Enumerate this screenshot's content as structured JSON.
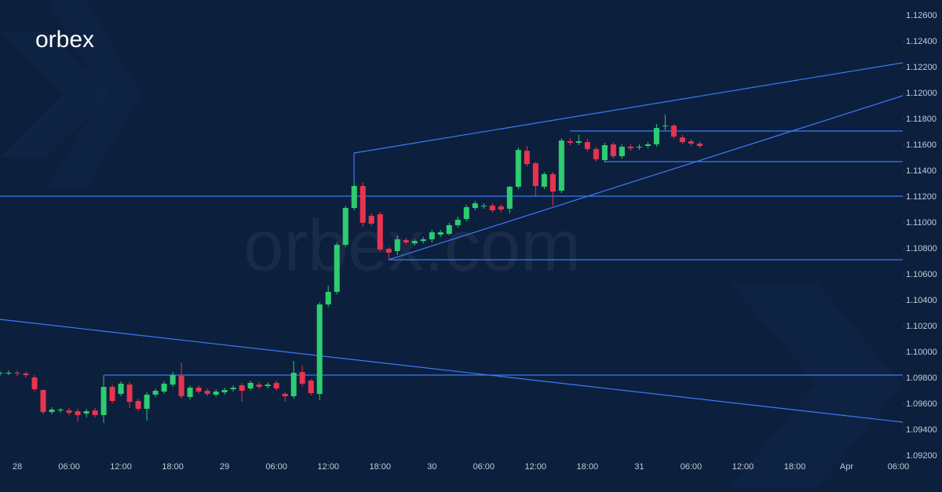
{
  "logo": "orbex",
  "watermark": "orbex.com",
  "chart_data": {
    "type": "candlestick",
    "up_color": "#2ecc71",
    "down_color": "#e8344e",
    "x": [
      -2,
      -1,
      0,
      1,
      2,
      3,
      4,
      5,
      6,
      7,
      8,
      9,
      10,
      11,
      12,
      13,
      14,
      15,
      16,
      17,
      18,
      19,
      20,
      21,
      22,
      23,
      24,
      25,
      26,
      27,
      28,
      29,
      30,
      31,
      32,
      33,
      34,
      35,
      36,
      37,
      38,
      39,
      40,
      41,
      42,
      43,
      44,
      45,
      46,
      47,
      48,
      49,
      50,
      51,
      52,
      53,
      54,
      55,
      56,
      57,
      58,
      59,
      60,
      61,
      62,
      63,
      64,
      65,
      66,
      67,
      68,
      69,
      70,
      71,
      72,
      73,
      74,
      75,
      76,
      77,
      78,
      79
    ],
    "open": [
      1.09836,
      1.09836,
      1.09842,
      1.09836,
      1.09806,
      1.09709,
      1.09539,
      1.09551,
      1.09551,
      1.09545,
      1.09527,
      1.09551,
      1.09515,
      1.09733,
      1.09679,
      1.09751,
      1.09624,
      1.09564,
      1.09673,
      1.09697,
      1.09751,
      1.09818,
      1.09655,
      1.09727,
      1.09703,
      1.09673,
      1.09691,
      1.09715,
      1.09745,
      1.09721,
      1.09751,
      1.09739,
      1.09764,
      1.09679,
      1.09661,
      1.09848,
      1.09782,
      1.09679,
      1.1037,
      1.10467,
      1.1083,
      1.11115,
      1.11285,
      1.11054,
      1.11067,
      1.108,
      1.10782,
      1.10867,
      1.10842,
      1.1086,
      1.10873,
      1.10909,
      1.10915,
      1.10982,
      1.1103,
      1.11115,
      1.11127,
      1.11133,
      1.11127,
      1.11109,
      1.11279,
      1.11557,
      1.1146,
      1.11279,
      1.11376,
      1.11248,
      1.1163,
      1.11618,
      1.11624,
      1.1157,
      1.11485,
      1.11606,
      1.11515,
      1.11588,
      1.11582,
      1.11594,
      1.11606,
      1.11745,
      1.11751,
      1.1166,
      1.1163,
      1.11612
    ],
    "high": [
      1.09854,
      1.09861,
      1.09861,
      1.09854,
      1.09824,
      1.09715,
      1.09576,
      1.0957,
      1.0957,
      1.09564,
      1.09564,
      1.0957,
      1.09824,
      1.09751,
      1.09776,
      1.0977,
      1.09642,
      1.09691,
      1.09721,
      1.09776,
      1.09848,
      1.09921,
      1.09745,
      1.09745,
      1.09721,
      1.09715,
      1.09727,
      1.09745,
      1.09764,
      1.09782,
      1.0977,
      1.0977,
      1.09782,
      1.09697,
      1.09933,
      1.09897,
      1.09794,
      1.10388,
      1.10515,
      1.10848,
      1.11133,
      1.11315,
      1.11315,
      1.11073,
      1.11085,
      1.10812,
      1.10903,
      1.10885,
      1.10873,
      1.10891,
      1.10945,
      1.10945,
      1.11,
      1.11048,
      1.11139,
      1.1117,
      1.11151,
      1.11151,
      1.11145,
      1.11285,
      1.11582,
      1.11594,
      1.11473,
      1.11394,
      1.11394,
      1.11654,
      1.11654,
      1.11679,
      1.11648,
      1.11588,
      1.11618,
      1.11624,
      1.11606,
      1.11606,
      1.11606,
      1.11624,
      1.11763,
      1.11836,
      1.11763,
      1.11679,
      1.11648,
      1.1163
    ],
    "low": [
      1.09818,
      1.09824,
      1.09818,
      1.09806,
      1.09697,
      1.09521,
      1.09521,
      1.09533,
      1.09515,
      1.09467,
      1.09497,
      1.09497,
      1.09455,
      1.09606,
      1.09661,
      1.0957,
      1.09545,
      1.09473,
      1.09655,
      1.09679,
      1.09733,
      1.09642,
      1.09636,
      1.09679,
      1.09661,
      1.09655,
      1.09673,
      1.09697,
      1.09618,
      1.09703,
      1.09715,
      1.09721,
      1.09703,
      1.09618,
      1.09642,
      1.09739,
      1.09667,
      1.0963,
      1.10351,
      1.10448,
      1.10812,
      1.11097,
      1.1097,
      1.10976,
      1.10782,
      1.10715,
      1.10751,
      1.1083,
      1.10824,
      1.10842,
      1.10848,
      1.10891,
      1.10903,
      1.10964,
      1.11012,
      1.11097,
      1.11109,
      1.11079,
      1.11079,
      1.11073,
      1.1126,
      1.11436,
      1.11206,
      1.1126,
      1.11133,
      1.1123,
      1.116,
      1.116,
      1.11551,
      1.11473,
      1.11466,
      1.11497,
      1.11497,
      1.11557,
      1.11563,
      1.11576,
      1.11588,
      1.11715,
      1.11648,
      1.11606,
      1.11594,
      1.11576
    ],
    "close": [
      1.09842,
      1.09842,
      1.09836,
      1.09824,
      1.09715,
      1.09539,
      1.09558,
      1.09558,
      1.09533,
      1.09515,
      1.09545,
      1.09515,
      1.09733,
      1.09624,
      1.09758,
      1.09618,
      1.09564,
      1.09673,
      1.09703,
      1.09758,
      1.09824,
      1.09661,
      1.09727,
      1.09697,
      1.09679,
      1.09697,
      1.09709,
      1.09727,
      1.09703,
      1.09764,
      1.09733,
      1.09751,
      1.09721,
      1.09661,
      1.09842,
      1.09758,
      1.09685,
      1.1037,
      1.10467,
      1.1083,
      1.11115,
      1.11285,
      1.11,
      1.10994,
      1.10794,
      1.1077,
      1.10873,
      1.10848,
      1.1086,
      1.10873,
      1.10927,
      1.10927,
      1.10982,
      1.11024,
      1.11121,
      1.11151,
      1.11133,
      1.11097,
      1.11103,
      1.11279,
      1.11563,
      1.11454,
      1.11285,
      1.11376,
      1.11242,
      1.11636,
      1.11618,
      1.1163,
      1.1157,
      1.11491,
      1.116,
      1.11515,
      1.11588,
      1.11576,
      1.11588,
      1.11606,
      1.11733,
      1.11751,
      1.11666,
      1.11624,
      1.11612,
      1.11594
    ],
    "xlim": [
      -2,
      102.5
    ],
    "xticks": [
      {
        "value": 0,
        "label": "28"
      },
      {
        "value": 6,
        "label": "06:00"
      },
      {
        "value": 12,
        "label": "12:00"
      },
      {
        "value": 18,
        "label": "18:00"
      },
      {
        "value": 24,
        "label": "29"
      },
      {
        "value": 30,
        "label": "06:00"
      },
      {
        "value": 36,
        "label": "12:00"
      },
      {
        "value": 42,
        "label": "18:00"
      },
      {
        "value": 48,
        "label": "30"
      },
      {
        "value": 54,
        "label": "06:00"
      },
      {
        "value": 60,
        "label": "12:00"
      },
      {
        "value": 66,
        "label": "18:00"
      },
      {
        "value": 72,
        "label": "31"
      },
      {
        "value": 78,
        "label": "06:00"
      },
      {
        "value": 84,
        "label": "12:00"
      },
      {
        "value": 90,
        "label": "18:00"
      },
      {
        "value": 96,
        "label": "Apr"
      },
      {
        "value": 102,
        "label": "06:00"
      }
    ],
    "ylim": [
      1.092,
      1.126
    ],
    "yticks": [
      {
        "value": 1.092,
        "label": "1.09200"
      },
      {
        "value": 1.094,
        "label": "1.09400"
      },
      {
        "value": 1.096,
        "label": "1.09600"
      },
      {
        "value": 1.098,
        "label": "1.09800"
      },
      {
        "value": 1.1,
        "label": "1.10000"
      },
      {
        "value": 1.102,
        "label": "1.10200"
      },
      {
        "value": 1.104,
        "label": "1.10400"
      },
      {
        "value": 1.106,
        "label": "1.10600"
      },
      {
        "value": 1.108,
        "label": "1.10800"
      },
      {
        "value": 1.11,
        "label": "1.11000"
      },
      {
        "value": 1.112,
        "label": "1.11200"
      },
      {
        "value": 1.114,
        "label": "1.11400"
      },
      {
        "value": 1.116,
        "label": "1.11600"
      },
      {
        "value": 1.118,
        "label": "1.11800"
      },
      {
        "value": 1.12,
        "label": "1.12000"
      },
      {
        "value": 1.122,
        "label": "1.12200"
      },
      {
        "value": 1.124,
        "label": "1.12400"
      },
      {
        "value": 1.126,
        "label": "1.12600"
      }
    ]
  }
}
